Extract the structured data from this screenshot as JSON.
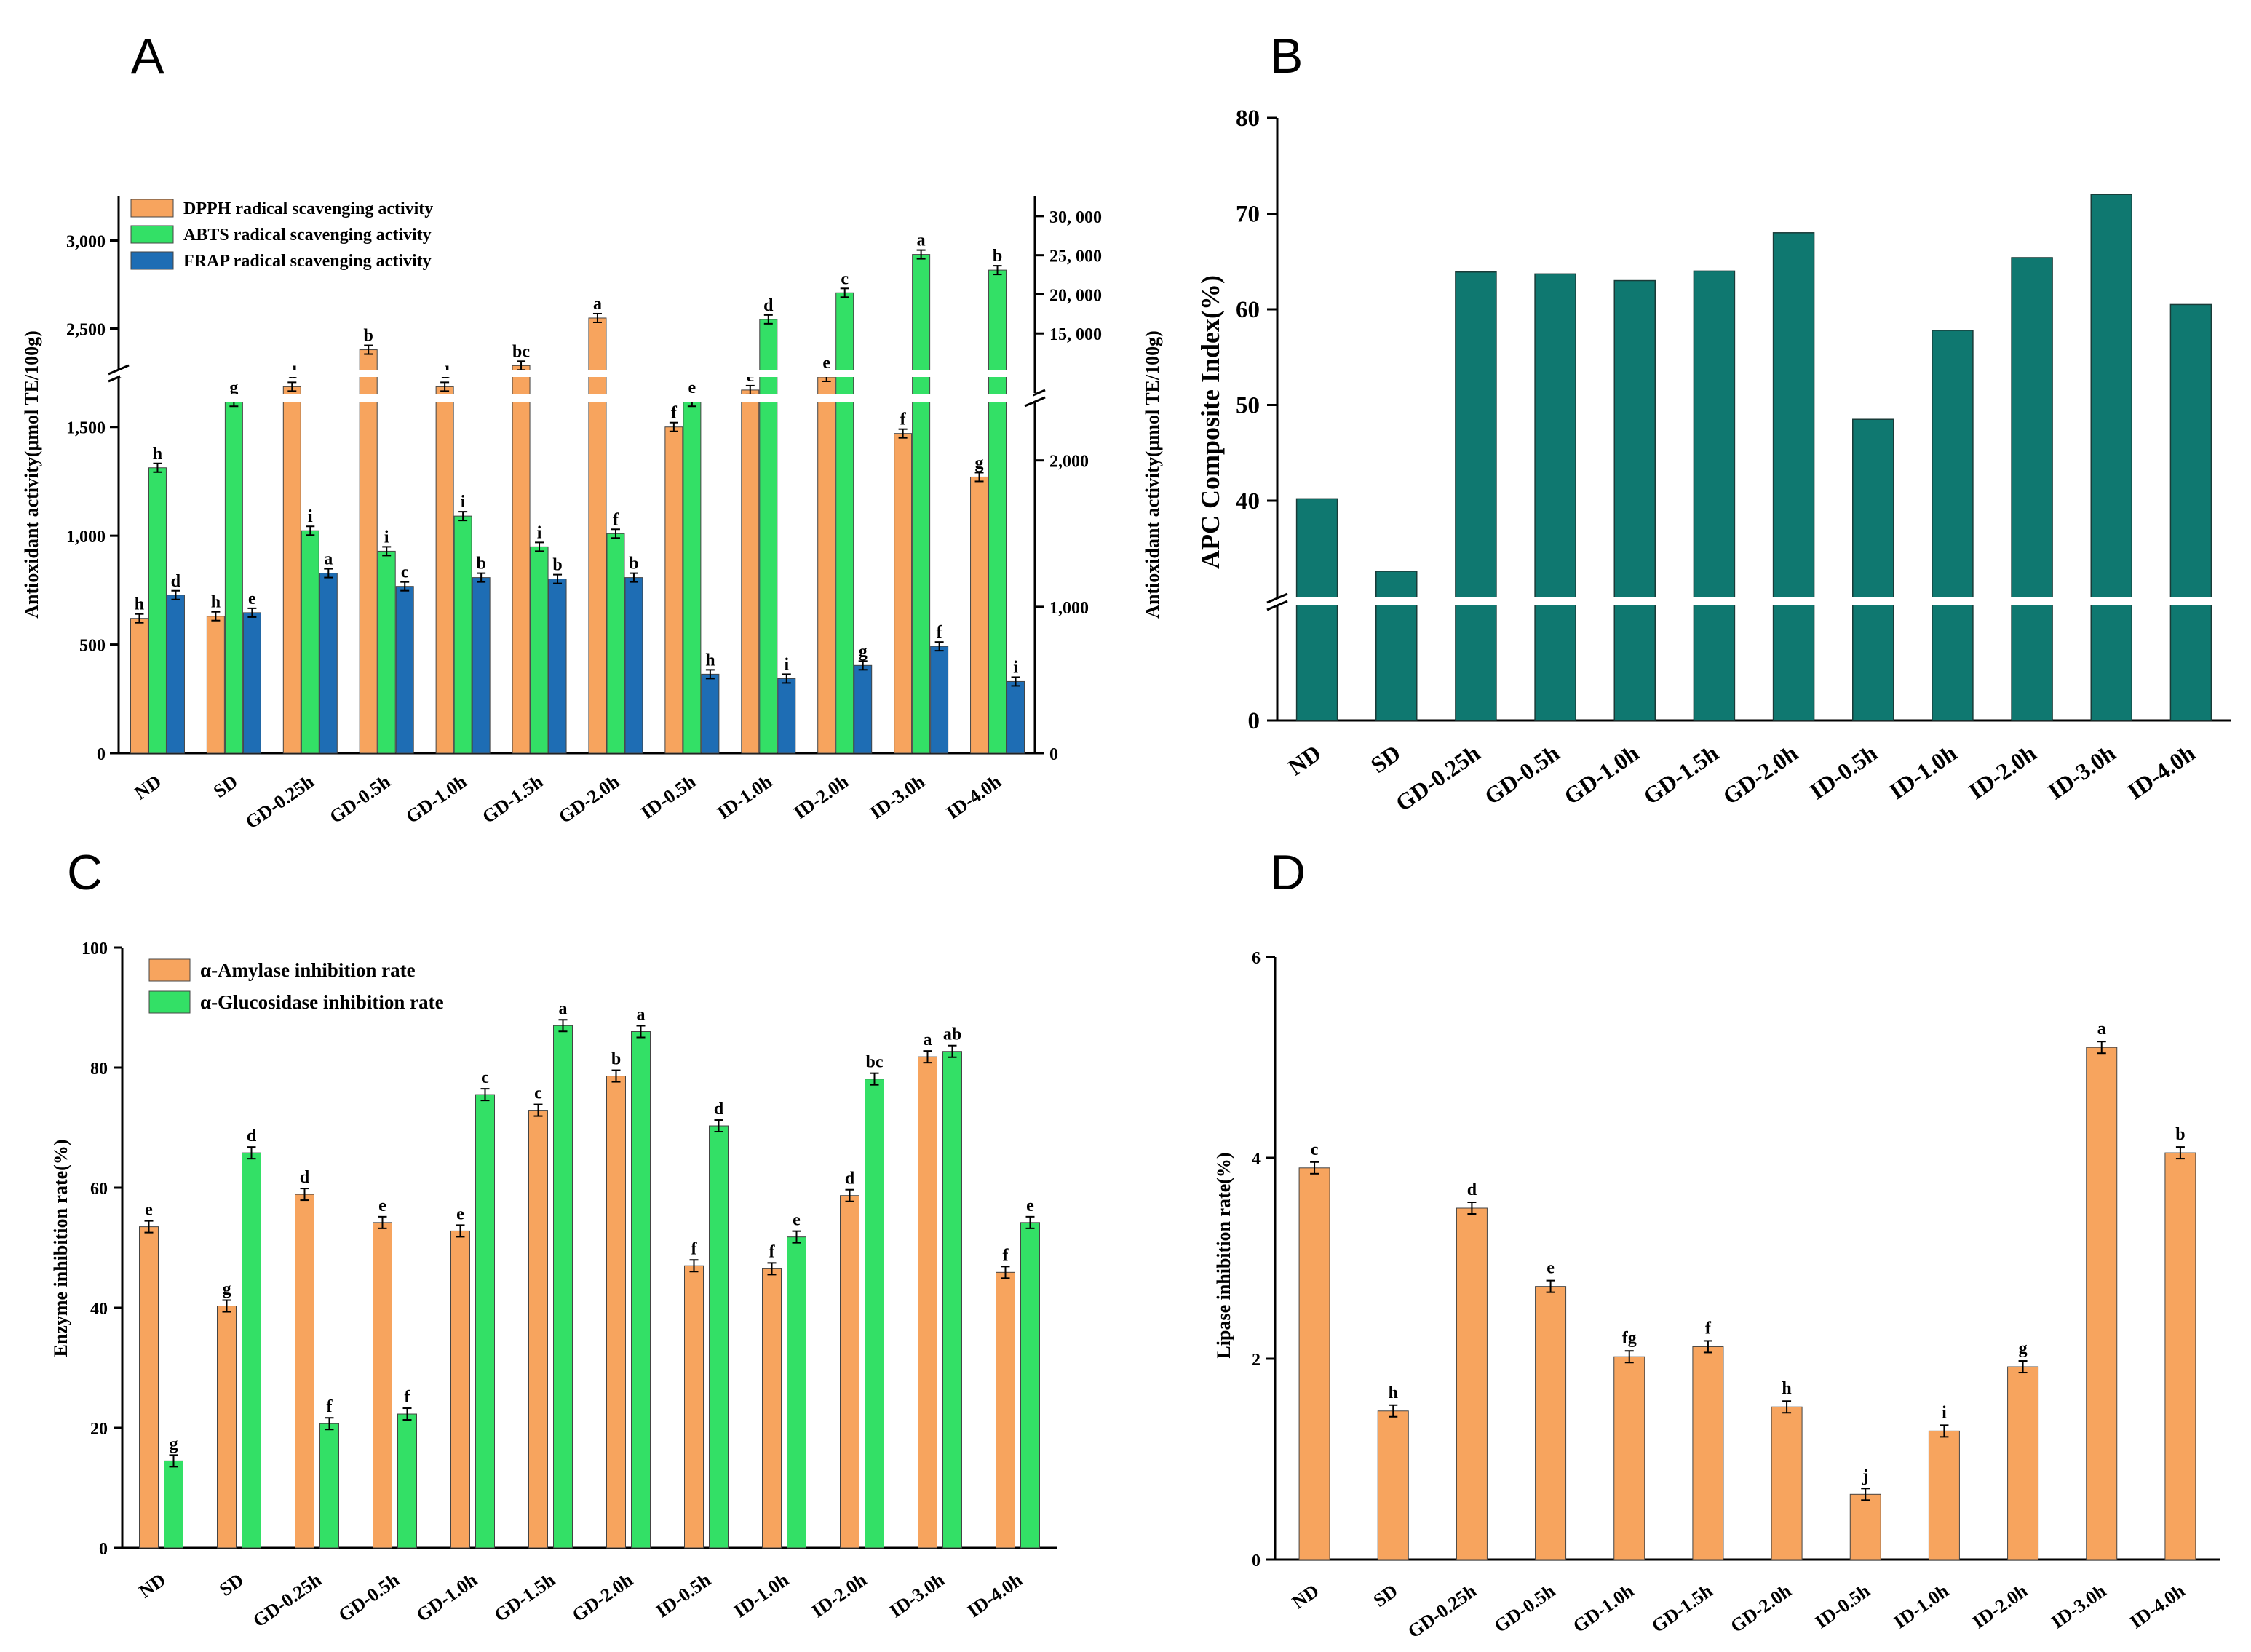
{
  "colors": {
    "orange": "#f7a45e",
    "green": "#33e066",
    "blue": "#1e6db4",
    "teal": "#0f7870"
  },
  "categories": [
    "ND",
    "SD",
    "GD-0.25h",
    "GD-0.5h",
    "GD-1.0h",
    "GD-1.5h",
    "GD-2.0h",
    "ID-0.5h",
    "ID-1.0h",
    "ID-2.0h",
    "ID-3.0h",
    "ID-4.0h"
  ],
  "panels": {
    "a": "A",
    "b": "B",
    "c": "C",
    "d": "D"
  },
  "chart_data": [
    {
      "panel": "A",
      "type": "bar",
      "ylabel_left": "Antioxidant activity(μmol TE/100g)",
      "ylabel_right": "Antioxidant activity(μmol TE/100g)",
      "left_ticks_lower": [
        "0",
        "500",
        "1,000",
        "1,500"
      ],
      "left_ticks_upper": [
        "2,500",
        "3,000"
      ],
      "right_ticks_lower": [
        "0",
        "1,000",
        "2,000"
      ],
      "right_ticks_upper": [
        "15, 000",
        "20, 000",
        "25, 000",
        "30, 000"
      ],
      "legend": [
        "DPPH radical scavenging activity",
        "ABTS radical scavenging activity",
        "FRAP radical scavenging activity"
      ],
      "series": [
        {
          "name": "DPPH radical scavenging activity",
          "axis": "left",
          "values": [
            620,
            630,
            2170,
            2380,
            2170,
            2290,
            2560,
            1500,
            1670,
            1730,
            1470,
            1270
          ],
          "labels": [
            "h",
            "h",
            "d",
            "b",
            "d",
            "bc",
            "a",
            "f",
            "e",
            "e",
            "f",
            "g"
          ]
        },
        {
          "name": "ABTS radical scavenging activity",
          "axis": "right",
          "values": [
            1950,
            2400,
            1520,
            1380,
            1620,
            1410,
            1500,
            2400,
            16800,
            20200,
            25100,
            23100
          ],
          "labels": [
            "h",
            "g",
            "i",
            "i",
            "i",
            "i",
            "f",
            "e",
            "d",
            "c",
            "a",
            "b"
          ]
        },
        {
          "name": "FRAP radical scavenging activity",
          "axis": "right",
          "values": [
            1080,
            960,
            1230,
            1140,
            1200,
            1190,
            1200,
            540,
            510,
            600,
            730,
            490
          ],
          "labels": [
            "d",
            "e",
            "a",
            "c",
            "b",
            "b",
            "b",
            "h",
            "i",
            "g",
            "f",
            "i"
          ]
        }
      ]
    },
    {
      "panel": "B",
      "type": "bar",
      "ylabel": "APC Composite Index(%)",
      "ticks": [
        "0",
        "40",
        "50",
        "60",
        "70",
        "80"
      ],
      "values": [
        40.2,
        37.5,
        63.9,
        63.7,
        63.0,
        64.0,
        68.0,
        48.5,
        57.8,
        65.4,
        72.0,
        60.5
      ]
    },
    {
      "panel": "C",
      "type": "bar",
      "ylabel": "Enzyme inhibition rate(%)",
      "ylim": [
        0,
        100
      ],
      "ticks": [
        "0",
        "20",
        "40",
        "60",
        "80",
        "100"
      ],
      "legend": [
        "α-Amylase inhibition rate",
        "α-Glucosidase inhibition rate"
      ],
      "series": [
        {
          "name": "α-Amylase inhibition rate",
          "values": [
            53.5,
            40.3,
            58.9,
            54.2,
            52.8,
            72.9,
            78.6,
            47.0,
            46.5,
            58.7,
            81.8,
            45.9
          ],
          "labels": [
            "e",
            "g",
            "d",
            "e",
            "e",
            "c",
            "b",
            "f",
            "f",
            "d",
            "a",
            "f"
          ]
        },
        {
          "name": "α-Glucosidase inhibition rate",
          "values": [
            14.5,
            65.8,
            20.7,
            22.3,
            75.5,
            87.0,
            86.0,
            70.3,
            51.8,
            78.1,
            82.7,
            54.2
          ],
          "labels": [
            "g",
            "d",
            "f",
            "f",
            "c",
            "a",
            "a",
            "d",
            "e",
            "bc",
            "ab",
            "e"
          ]
        }
      ]
    },
    {
      "panel": "D",
      "type": "bar",
      "ylabel": "Lipase inhibition rate(%)",
      "ylim": [
        0,
        6
      ],
      "ticks": [
        "0",
        "2",
        "4",
        "6"
      ],
      "values": [
        3.9,
        1.48,
        3.5,
        2.72,
        2.02,
        2.12,
        1.52,
        0.65,
        1.28,
        1.92,
        5.1,
        4.05
      ],
      "labels": [
        "c",
        "h",
        "d",
        "e",
        "fg",
        "f",
        "h",
        "j",
        "i",
        "g",
        "a",
        "b"
      ]
    }
  ]
}
